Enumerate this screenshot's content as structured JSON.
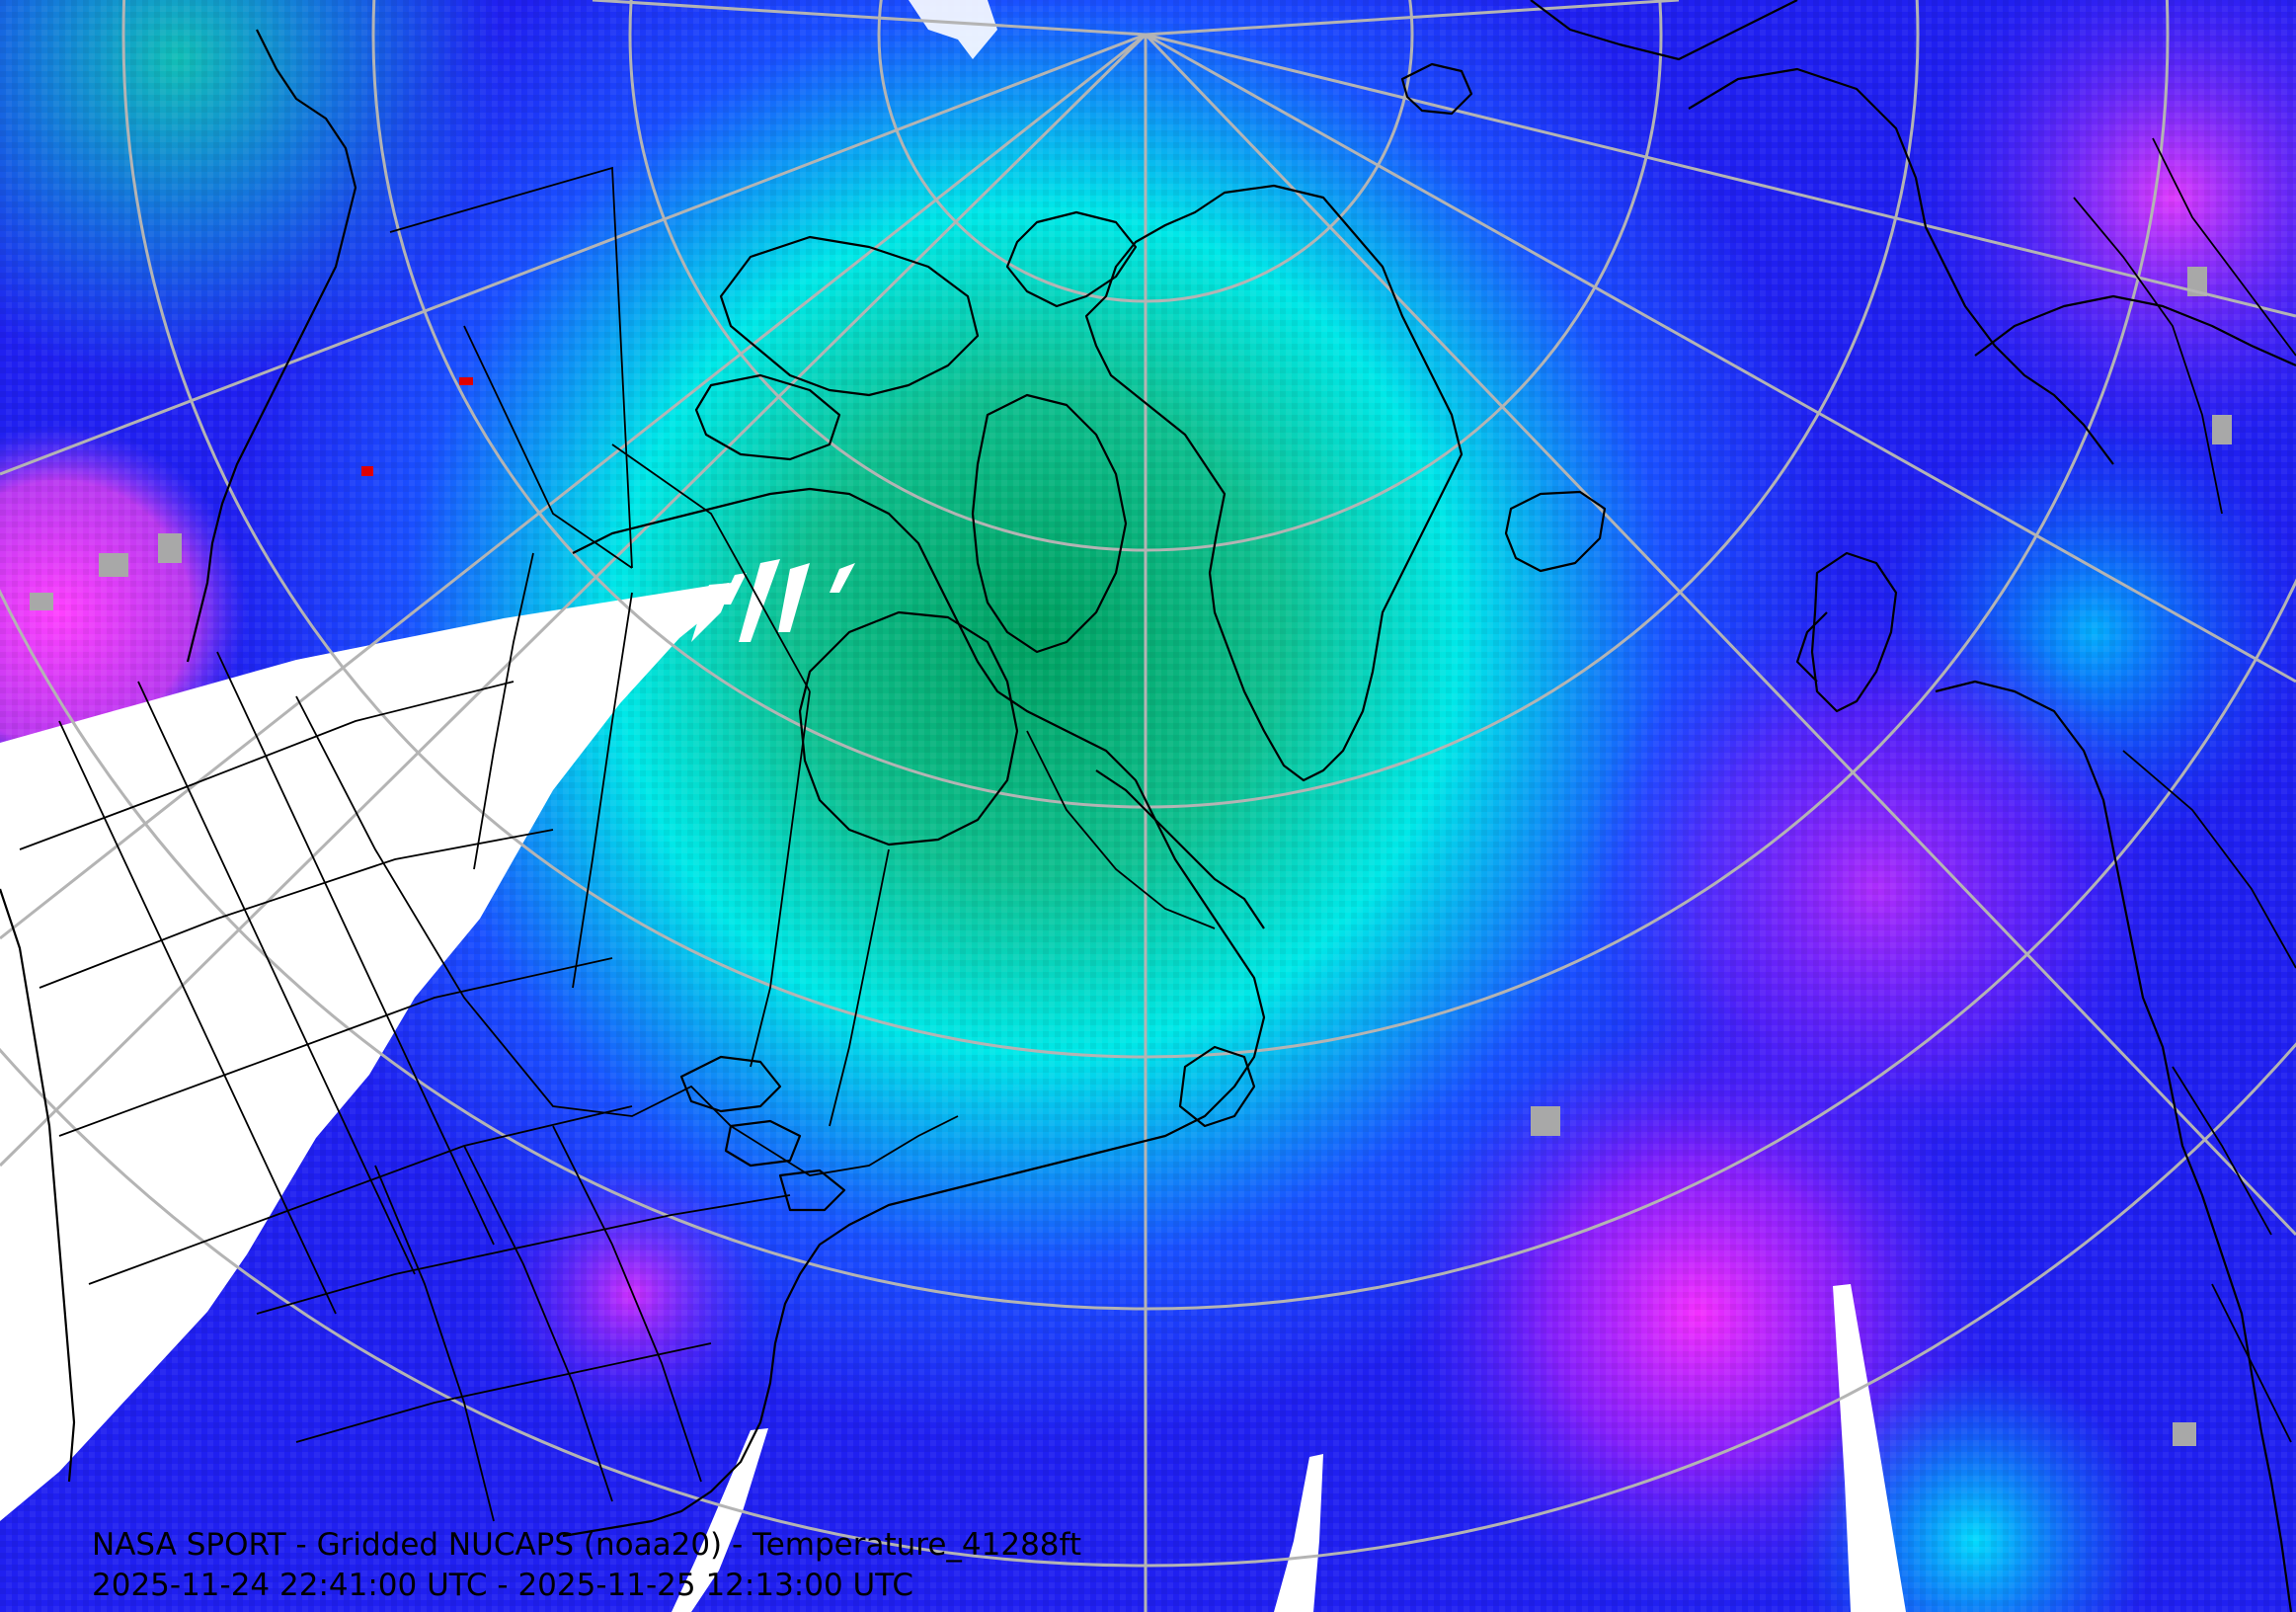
{
  "title": "NASA SPORT - Gridded NUCAPS (noaa20) - Temperature_41288ft",
  "time_range": "2025-11-24 22:41:00 UTC - 2025-11-25 12:13:00 UTC",
  "colors": {
    "cold_green": "#00a060",
    "teal": "#10d0b0",
    "cyan": "#00f0f0",
    "blue": "#1030ff",
    "violet": "#8020ff",
    "magenta": "#ff30ff",
    "gray": "#a0a0a0",
    "no_data": "#ffffff",
    "grid": "#b4b4b4",
    "coastline": "#000000"
  }
}
